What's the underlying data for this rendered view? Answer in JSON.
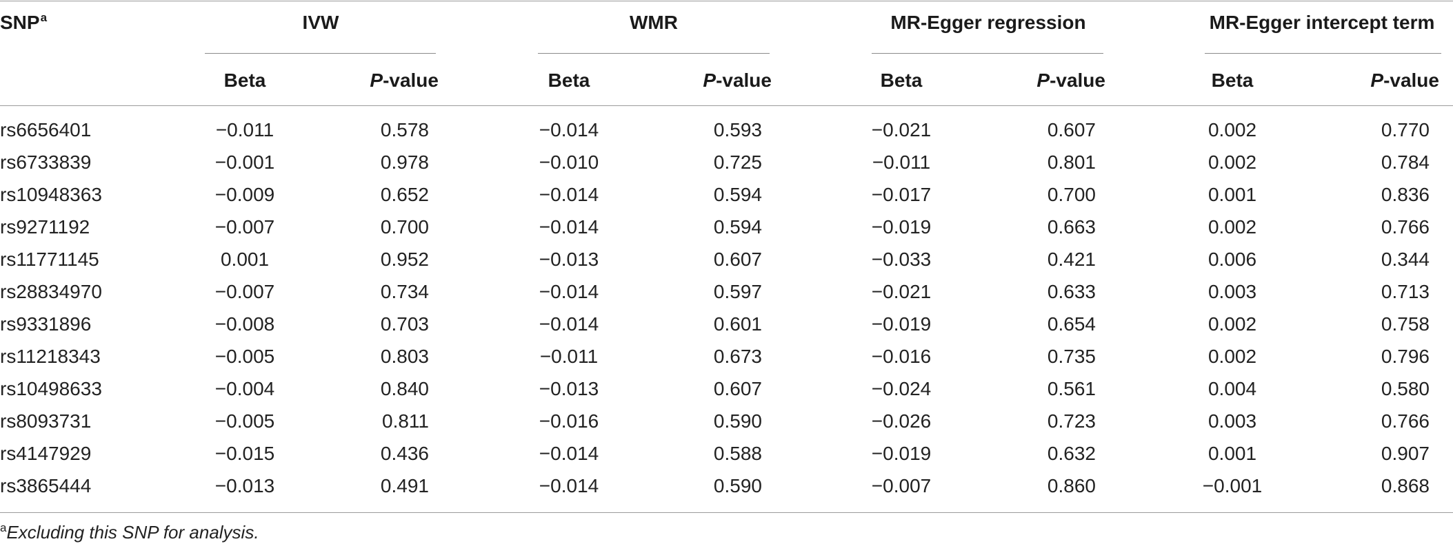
{
  "table": {
    "snp_header": "SNP",
    "snp_header_sup": "a",
    "groups": [
      {
        "label": "IVW"
      },
      {
        "label": "WMR"
      },
      {
        "label": "MR-Egger regression"
      },
      {
        "label": "MR-Egger intercept term"
      }
    ],
    "beta_label": "Beta",
    "p_label_italic": "P",
    "p_label_rest": "-value",
    "rows": [
      {
        "snp": "rs6656401",
        "ivw_beta": "−0.011",
        "ivw_p": "0.578",
        "wmr_beta": "−0.014",
        "wmr_p": "0.593",
        "egger_beta": "−0.021",
        "egger_p": "0.607",
        "int_beta": "0.002",
        "int_p": "0.770"
      },
      {
        "snp": "rs6733839",
        "ivw_beta": "−0.001",
        "ivw_p": "0.978",
        "wmr_beta": "−0.010",
        "wmr_p": "0.725",
        "egger_beta": "−0.011",
        "egger_p": "0.801",
        "int_beta": "0.002",
        "int_p": "0.784"
      },
      {
        "snp": "rs10948363",
        "ivw_beta": "−0.009",
        "ivw_p": "0.652",
        "wmr_beta": "−0.014",
        "wmr_p": "0.594",
        "egger_beta": "−0.017",
        "egger_p": "0.700",
        "int_beta": "0.001",
        "int_p": "0.836"
      },
      {
        "snp": "rs9271192",
        "ivw_beta": "−0.007",
        "ivw_p": "0.700",
        "wmr_beta": "−0.014",
        "wmr_p": "0.594",
        "egger_beta": "−0.019",
        "egger_p": "0.663",
        "int_beta": "0.002",
        "int_p": "0.766"
      },
      {
        "snp": "rs11771145",
        "ivw_beta": "0.001",
        "ivw_p": "0.952",
        "wmr_beta": "−0.013",
        "wmr_p": "0.607",
        "egger_beta": "−0.033",
        "egger_p": "0.421",
        "int_beta": "0.006",
        "int_p": "0.344"
      },
      {
        "snp": "rs28834970",
        "ivw_beta": "−0.007",
        "ivw_p": "0.734",
        "wmr_beta": "−0.014",
        "wmr_p": "0.597",
        "egger_beta": "−0.021",
        "egger_p": "0.633",
        "int_beta": "0.003",
        "int_p": "0.713"
      },
      {
        "snp": "rs9331896",
        "ivw_beta": "−0.008",
        "ivw_p": "0.703",
        "wmr_beta": "−0.014",
        "wmr_p": "0.601",
        "egger_beta": "−0.019",
        "egger_p": "0.654",
        "int_beta": "0.002",
        "int_p": "0.758"
      },
      {
        "snp": "rs11218343",
        "ivw_beta": "−0.005",
        "ivw_p": "0.803",
        "wmr_beta": "−0.011",
        "wmr_p": "0.673",
        "egger_beta": "−0.016",
        "egger_p": "0.735",
        "int_beta": "0.002",
        "int_p": "0.796"
      },
      {
        "snp": "rs10498633",
        "ivw_beta": "−0.004",
        "ivw_p": "0.840",
        "wmr_beta": "−0.013",
        "wmr_p": "0.607",
        "egger_beta": "−0.024",
        "egger_p": "0.561",
        "int_beta": "0.004",
        "int_p": "0.580"
      },
      {
        "snp": "rs8093731",
        "ivw_beta": "−0.005",
        "ivw_p": "0.811",
        "wmr_beta": "−0.016",
        "wmr_p": "0.590",
        "egger_beta": "−0.026",
        "egger_p": "0.723",
        "int_beta": "0.003",
        "int_p": "0.766"
      },
      {
        "snp": "rs4147929",
        "ivw_beta": "−0.015",
        "ivw_p": "0.436",
        "wmr_beta": "−0.014",
        "wmr_p": "0.588",
        "egger_beta": "−0.019",
        "egger_p": "0.632",
        "int_beta": "0.001",
        "int_p": "0.907"
      },
      {
        "snp": "rs3865444",
        "ivw_beta": "−0.013",
        "ivw_p": "0.491",
        "wmr_beta": "−0.014",
        "wmr_p": "0.590",
        "egger_beta": "−0.007",
        "egger_p": "0.860",
        "int_beta": "−0.001",
        "int_p": "0.868"
      }
    ]
  },
  "footnote": {
    "mark": "a",
    "text": "Excluding this SNP for analysis."
  }
}
